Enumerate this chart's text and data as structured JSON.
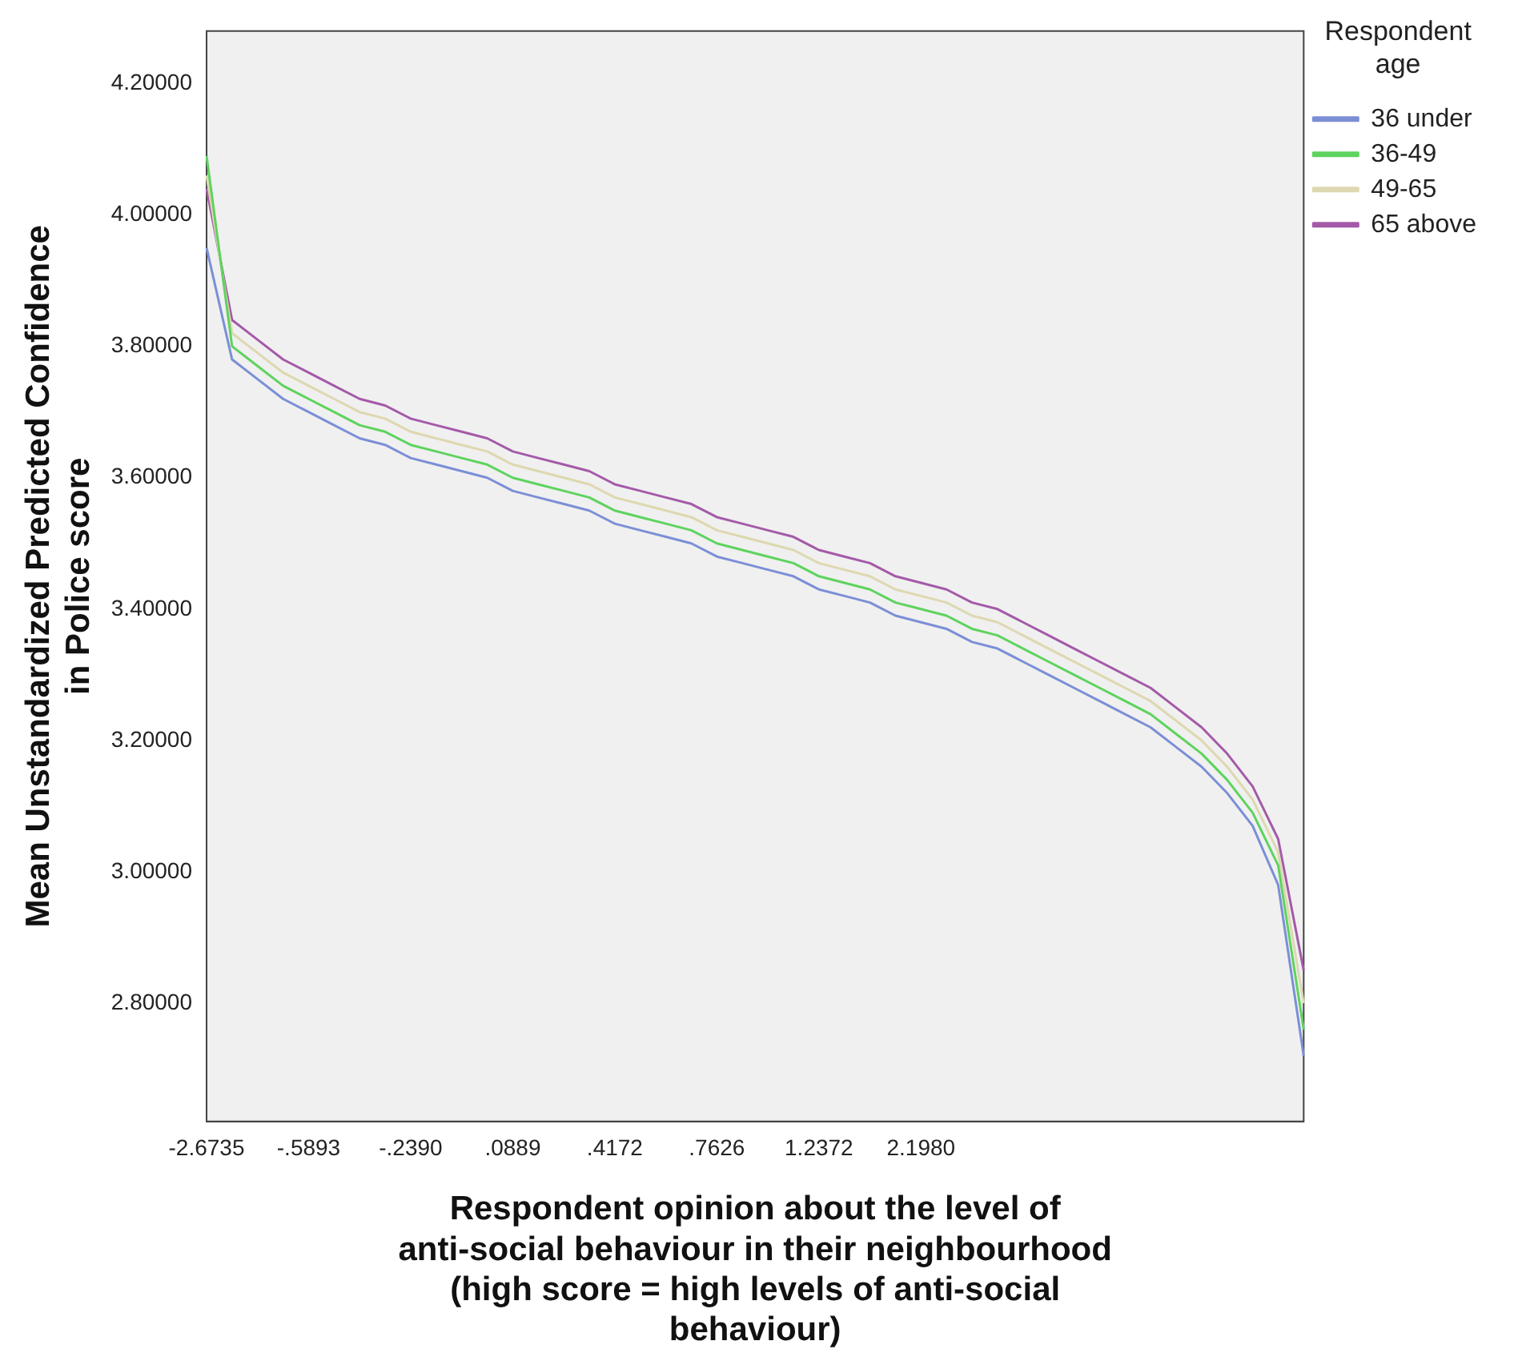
{
  "chart_data": {
    "type": "line",
    "xlabel": "Respondent opinion about the level of anti-social behaviour in their neighbourhood (high score = high levels of anti-social behaviour)",
    "ylabel": "Mean Unstandardized Predicted Confidence in Police score",
    "legend_title": "Respondent age",
    "legend": "top right",
    "grid": false,
    "marker": "none",
    "line_style": "solid",
    "categories": [
      "-2.6735",
      null,
      null,
      null,
      "-.5893",
      null,
      null,
      null,
      "-.2390",
      null,
      null,
      null,
      ".0889",
      null,
      null,
      null,
      ".4172",
      null,
      null,
      null,
      ".7626",
      null,
      null,
      null,
      "1.2372",
      null,
      null,
      null,
      "2.1980",
      null,
      null,
      null,
      null,
      null,
      null,
      null,
      null,
      null,
      null,
      null,
      null,
      null,
      null,
      null
    ],
    "ylim": [
      2.62,
      4.28
    ],
    "yticks": [
      {
        "value": 2.8,
        "label": "2.80000"
      },
      {
        "value": 3.0,
        "label": "3.00000"
      },
      {
        "value": 3.2,
        "label": "3.20000"
      },
      {
        "value": 3.4,
        "label": "3.40000"
      },
      {
        "value": 3.6,
        "label": "3.60000"
      },
      {
        "value": 3.8,
        "label": "3.80000"
      },
      {
        "value": 4.0,
        "label": "4.00000"
      },
      {
        "value": 4.2,
        "label": "4.20000"
      }
    ],
    "series": [
      {
        "name": "36 under",
        "color": "#7b8fd6",
        "values": [
          3.95,
          3.78,
          3.75,
          3.72,
          3.7,
          3.68,
          3.66,
          3.65,
          3.63,
          3.62,
          3.61,
          3.6,
          3.58,
          3.57,
          3.56,
          3.55,
          3.53,
          3.52,
          3.51,
          3.5,
          3.48,
          3.47,
          3.46,
          3.45,
          3.43,
          3.42,
          3.41,
          3.39,
          3.38,
          3.37,
          3.35,
          3.34,
          3.32,
          3.3,
          3.28,
          3.26,
          3.24,
          3.22,
          3.19,
          3.16,
          3.12,
          3.07,
          2.98,
          2.72
        ]
      },
      {
        "name": "36-49",
        "color": "#5ed35e",
        "values": [
          4.09,
          3.8,
          3.77,
          3.74,
          3.72,
          3.7,
          3.68,
          3.67,
          3.65,
          3.64,
          3.63,
          3.62,
          3.6,
          3.59,
          3.58,
          3.57,
          3.55,
          3.54,
          3.53,
          3.52,
          3.5,
          3.49,
          3.48,
          3.47,
          3.45,
          3.44,
          3.43,
          3.41,
          3.4,
          3.39,
          3.37,
          3.36,
          3.34,
          3.32,
          3.3,
          3.28,
          3.26,
          3.24,
          3.21,
          3.18,
          3.14,
          3.09,
          3.01,
          2.76
        ]
      },
      {
        "name": "49-65",
        "color": "#ddd8b0",
        "values": [
          4.06,
          3.82,
          3.79,
          3.76,
          3.74,
          3.72,
          3.7,
          3.69,
          3.67,
          3.66,
          3.65,
          3.64,
          3.62,
          3.61,
          3.6,
          3.59,
          3.57,
          3.56,
          3.55,
          3.54,
          3.52,
          3.51,
          3.5,
          3.49,
          3.47,
          3.46,
          3.45,
          3.43,
          3.42,
          3.41,
          3.39,
          3.38,
          3.36,
          3.34,
          3.32,
          3.3,
          3.28,
          3.26,
          3.23,
          3.2,
          3.16,
          3.11,
          3.03,
          2.8
        ]
      },
      {
        "name": "65 above",
        "color": "#a45aa8",
        "values": [
          4.04,
          3.84,
          3.81,
          3.78,
          3.76,
          3.74,
          3.72,
          3.71,
          3.69,
          3.68,
          3.67,
          3.66,
          3.64,
          3.63,
          3.62,
          3.61,
          3.59,
          3.58,
          3.57,
          3.56,
          3.54,
          3.53,
          3.52,
          3.51,
          3.49,
          3.48,
          3.47,
          3.45,
          3.44,
          3.43,
          3.41,
          3.4,
          3.38,
          3.36,
          3.34,
          3.32,
          3.3,
          3.28,
          3.25,
          3.22,
          3.18,
          3.13,
          3.05,
          2.85
        ]
      }
    ]
  }
}
